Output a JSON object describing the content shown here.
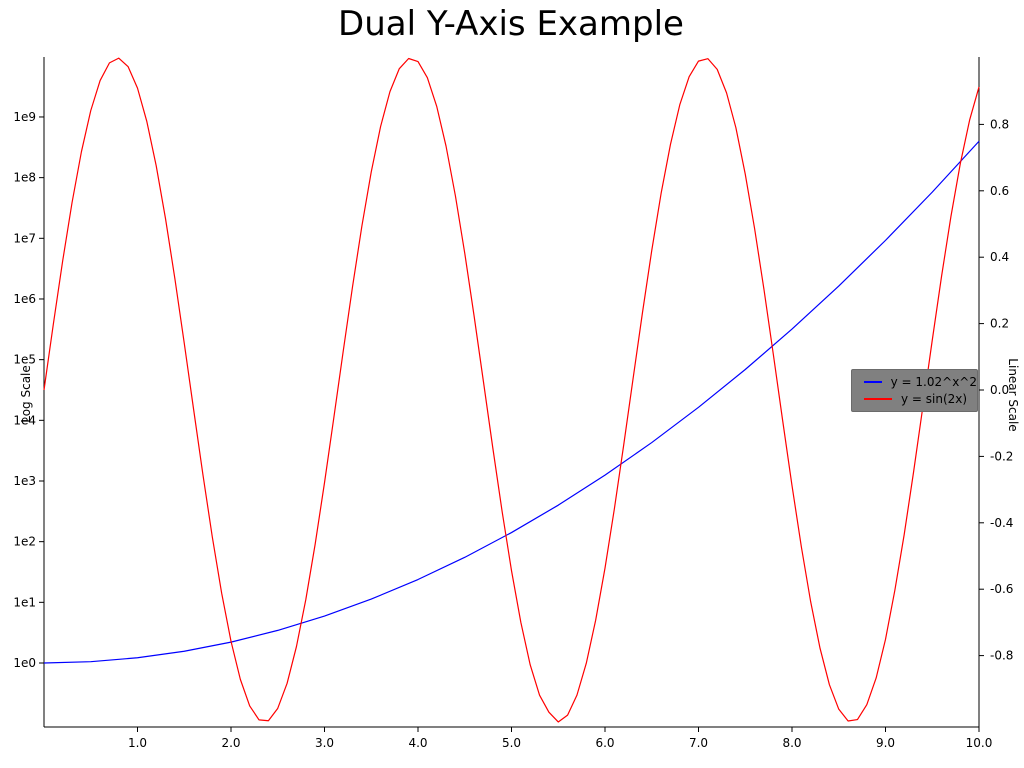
{
  "chart_data": {
    "type": "line",
    "title": "Dual Y-Axis Example",
    "grid": false,
    "x_axis": {
      "min": 0,
      "max": 10,
      "ticks": [
        {
          "value": 1,
          "label": "1.0"
        },
        {
          "value": 2,
          "label": "2.0"
        },
        {
          "value": 3,
          "label": "3.0"
        },
        {
          "value": 4,
          "label": "4.0"
        },
        {
          "value": 5,
          "label": "5.0"
        },
        {
          "value": 6,
          "label": "6.0"
        },
        {
          "value": 7,
          "label": "7.0"
        },
        {
          "value": 8,
          "label": "8.0"
        },
        {
          "value": 9,
          "label": "9.0"
        },
        {
          "value": 10,
          "label": "10.0"
        }
      ]
    },
    "left_axis": {
      "label": "Log Scale",
      "scale": "log",
      "ticks": [
        {
          "value": 1,
          "label": "1e0"
        },
        {
          "value": 10,
          "label": "1e1"
        },
        {
          "value": 100,
          "label": "1e2"
        },
        {
          "value": 1000,
          "label": "1e3"
        },
        {
          "value": 10000,
          "label": "1e4"
        },
        {
          "value": 100000,
          "label": "1e5"
        },
        {
          "value": 1000000,
          "label": "1e6"
        },
        {
          "value": 10000000,
          "label": "1e7"
        },
        {
          "value": 100000000,
          "label": "1e8"
        },
        {
          "value": 1000000000,
          "label": "1e9"
        }
      ]
    },
    "right_axis": {
      "label": "Linear Scale",
      "scale": "linear",
      "ylim": [
        -1.01,
        1.0
      ],
      "ticks": [
        {
          "value": 0.8,
          "label": "0.8"
        },
        {
          "value": 0.6,
          "label": "0.6"
        },
        {
          "value": 0.4,
          "label": "0.4"
        },
        {
          "value": 0.2,
          "label": "0.2"
        },
        {
          "value": 0.0,
          "label": "0.0"
        },
        {
          "value": -0.2,
          "label": "-0.2"
        },
        {
          "value": -0.4,
          "label": "-0.4"
        },
        {
          "value": -0.6,
          "label": "-0.6"
        },
        {
          "value": -0.8,
          "label": "-0.8"
        }
      ]
    },
    "series": [
      {
        "name": "y = 1.02^x^2",
        "color": "#0000ff",
        "axis": "left",
        "x": [
          0,
          0.5,
          1,
          1.5,
          2,
          2.5,
          3,
          3.5,
          4,
          4.5,
          5,
          5.5,
          6,
          6.5,
          7,
          7.5,
          8,
          8.5,
          9,
          9.5,
          10
        ],
        "y": [
          1,
          1.051,
          1.219,
          1.562,
          2.208,
          3.447,
          5.943,
          11.31,
          23.77,
          55.13,
          141.3,
          399.5,
          1247,
          4300,
          16370,
          68790,
          319200,
          1635000,
          9247000,
          57750000,
          398100000
        ]
      },
      {
        "name": "y = sin(2x)",
        "color": "#ff0000",
        "axis": "right",
        "x": [
          0,
          0.1,
          0.2,
          0.3,
          0.4,
          0.5,
          0.6,
          0.7,
          0.8,
          0.9,
          1,
          1.1,
          1.2,
          1.3,
          1.4,
          1.5,
          1.6,
          1.7,
          1.8,
          1.9,
          2,
          2.1,
          2.2,
          2.3,
          2.4,
          2.5,
          2.6,
          2.7,
          2.8,
          2.9,
          3,
          3.1,
          3.2,
          3.3,
          3.4,
          3.5,
          3.6,
          3.7,
          3.8,
          3.9,
          4,
          4.1,
          4.2,
          4.3,
          4.4,
          4.5,
          4.6,
          4.7,
          4.8,
          4.9,
          5,
          5.1,
          5.2,
          5.3,
          5.4,
          5.5,
          5.6,
          5.7,
          5.8,
          5.9,
          6,
          6.1,
          6.2,
          6.3,
          6.4,
          6.5,
          6.6,
          6.7,
          6.8,
          6.9,
          7,
          7.1,
          7.2,
          7.3,
          7.4,
          7.5,
          7.6,
          7.7,
          7.8,
          7.9,
          8,
          8.1,
          8.2,
          8.3,
          8.4,
          8.5,
          8.6,
          8.7,
          8.8,
          8.9,
          9,
          9.1,
          9.2,
          9.3,
          9.4,
          9.5,
          9.6,
          9.7,
          9.8,
          9.9,
          10
        ],
        "y": [
          0.0,
          0.1987,
          0.3894,
          0.5646,
          0.7174,
          0.8415,
          0.932,
          0.9854,
          0.9996,
          0.9738,
          0.9093,
          0.8085,
          0.6755,
          0.5155,
          0.335,
          0.1411,
          -0.0584,
          -0.2555,
          -0.4425,
          -0.6119,
          -0.7568,
          -0.8716,
          -0.9516,
          -0.9937,
          -0.9962,
          -0.9589,
          -0.8835,
          -0.7728,
          -0.6313,
          -0.4646,
          -0.2794,
          -0.0831,
          0.1165,
          0.3115,
          0.4941,
          0.657,
          0.7937,
          0.8987,
          0.9679,
          0.9985,
          0.9894,
          0.9407,
          0.8546,
          0.7344,
          0.5849,
          0.4121,
          0.2229,
          0.0248,
          -0.1743,
          -0.3665,
          -0.544,
          -0.6999,
          -0.8278,
          -0.9193,
          -0.9704,
          -0.9999,
          -0.9792,
          -0.9191,
          -0.8229,
          -0.6934,
          -0.5366,
          -0.3582,
          -0.1656,
          0.0336,
          0.2315,
          0.4202,
          0.5921,
          0.7396,
          0.8593,
          0.9437,
          0.9906,
          0.998,
          0.9657,
          0.895,
          0.79,
          0.6503,
          0.4863,
          0.3032,
          0.1078,
          -0.0919,
          -0.2879,
          -0.4724,
          -0.6383,
          -0.7781,
          -0.8876,
          -0.9614,
          -0.9969,
          -0.9927,
          -0.9479,
          -0.8674,
          -0.751,
          -0.6033,
          -0.4353,
          -0.2473,
          -0.0496,
          0.1498,
          0.3433,
          0.523,
          0.6819,
          0.8134,
          0.9129
        ]
      }
    ],
    "legend": {
      "position": "center-right",
      "background": "#808080",
      "entries": [
        {
          "label": "y = 1.02^x^2",
          "color": "#0000ff"
        },
        {
          "label": "y = sin(2x)",
          "color": "#ff0000"
        }
      ]
    }
  },
  "colors": {
    "background": "#ffffff",
    "axis": "#000000",
    "text": "#000000"
  }
}
